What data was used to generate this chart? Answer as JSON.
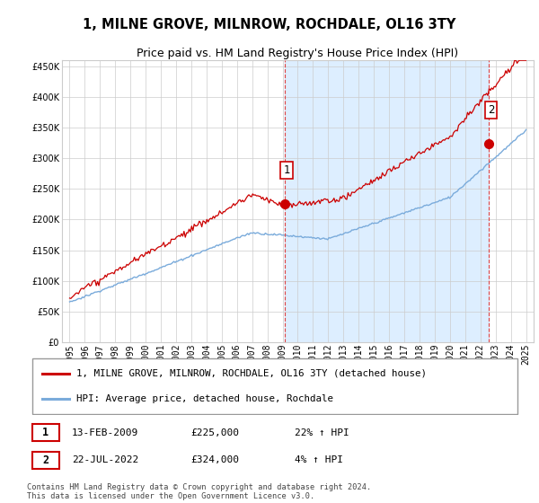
{
  "title": "1, MILNE GROVE, MILNROW, ROCHDALE, OL16 3TY",
  "subtitle": "Price paid vs. HM Land Registry's House Price Index (HPI)",
  "legend_line1": "1, MILNE GROVE, MILNROW, ROCHDALE, OL16 3TY (detached house)",
  "legend_line2": "HPI: Average price, detached house, Rochdale",
  "footer": "Contains HM Land Registry data © Crown copyright and database right 2024.\nThis data is licensed under the Open Government Licence v3.0.",
  "annotation1_date": "13-FEB-2009",
  "annotation1_price": "£225,000",
  "annotation1_hpi": "22% ↑ HPI",
  "annotation2_date": "22-JUL-2022",
  "annotation2_price": "£324,000",
  "annotation2_hpi": "4% ↑ HPI",
  "ylim": [
    0,
    460000
  ],
  "yticks": [
    0,
    50000,
    100000,
    150000,
    200000,
    250000,
    300000,
    350000,
    400000,
    450000
  ],
  "xlim_left": 1994.5,
  "xlim_right": 2025.5,
  "red_color": "#cc0000",
  "blue_color": "#7aabdb",
  "shade_color": "#ddeeff",
  "vline_color": "#dd4444",
  "grid_color": "#cccccc",
  "sale1_x": 2009.12,
  "sale1_y": 225000,
  "sale2_x": 2022.55,
  "sale2_y": 324000
}
